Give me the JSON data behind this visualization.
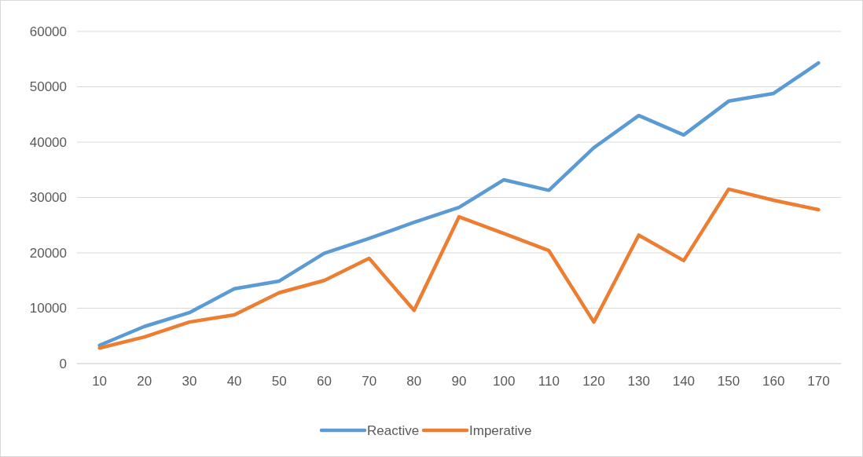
{
  "chart_data": {
    "type": "line",
    "categories": [
      "10",
      "20",
      "30",
      "40",
      "50",
      "60",
      "70",
      "80",
      "90",
      "100",
      "110",
      "120",
      "130",
      "140",
      "150",
      "160",
      "170"
    ],
    "series": [
      {
        "name": "Reactive",
        "color": "#5b9bd5",
        "values": [
          3300,
          6700,
          9200,
          13500,
          14900,
          19900,
          22600,
          25500,
          28200,
          33200,
          31300,
          39000,
          44800,
          41300,
          47400,
          48800,
          54300
        ]
      },
      {
        "name": "Imperative",
        "color": "#ed7d31",
        "values": [
          2800,
          4800,
          7500,
          8800,
          12800,
          15000,
          19000,
          9600,
          26500,
          23500,
          20400,
          7500,
          23200,
          18600,
          31500,
          29500,
          27800
        ]
      }
    ],
    "ylim": [
      0,
      60000
    ],
    "yticks": [
      0,
      10000,
      20000,
      30000,
      40000,
      50000,
      60000
    ],
    "grid": "y",
    "legend": "bottom",
    "marker": "none",
    "line_style": "solid"
  }
}
